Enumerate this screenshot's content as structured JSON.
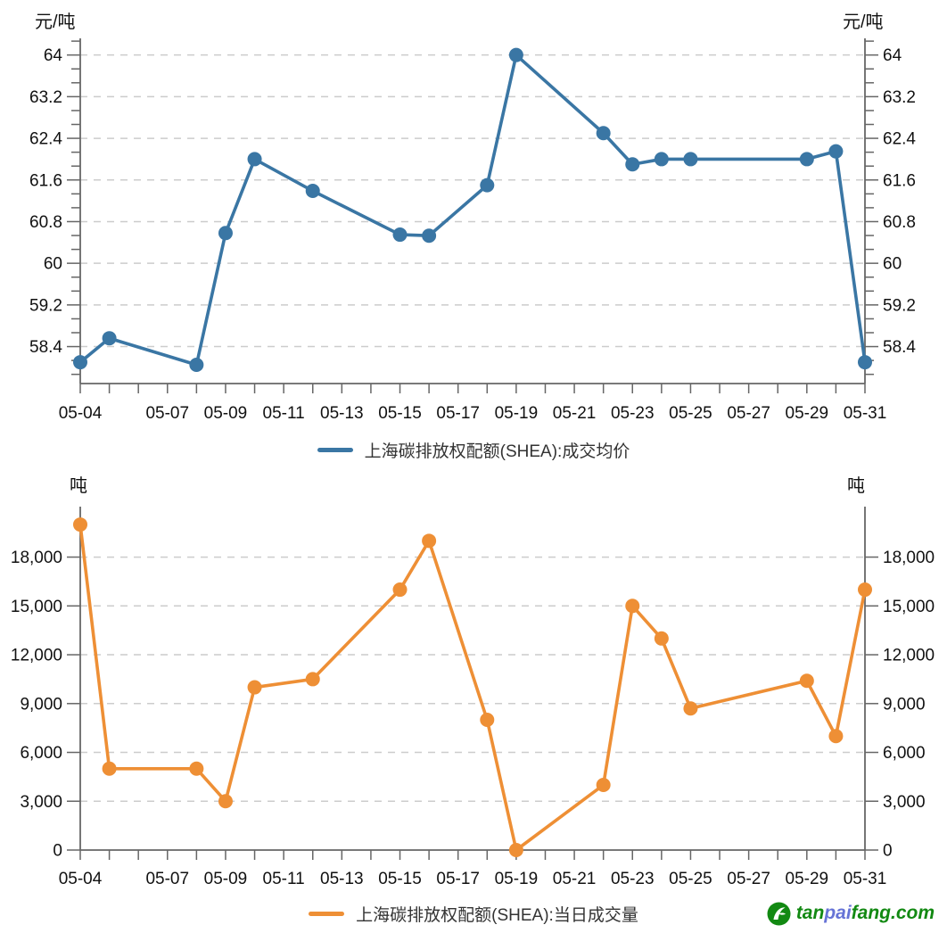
{
  "charts": [
    {
      "unit_left": "元/吨",
      "unit_right": "元/吨",
      "legend_label": "上海碳排放权配额(SHEA):成交均价",
      "line_color": "#3a76a4",
      "chart_data": {
        "type": "line",
        "title": "上海碳排放权配额(SHEA):成交均价",
        "xlabel": "",
        "ylabel": "元/吨",
        "x": [
          "05-04",
          "05-05",
          "05-08",
          "05-09",
          "05-10",
          "05-12",
          "05-15",
          "05-16",
          "05-18",
          "05-19",
          "05-22",
          "05-23",
          "05-24",
          "05-25",
          "05-29",
          "05-30",
          "05-31"
        ],
        "values": [
          58.1,
          58.56,
          58.05,
          60.58,
          62.0,
          61.39,
          60.55,
          60.53,
          61.5,
          64.0,
          62.5,
          61.9,
          62.0,
          62.0,
          62.0,
          62.15,
          58.1
        ],
        "x_axis": {
          "month_prefix": "05-",
          "first_day": 4,
          "last_day": 31,
          "labeled_days": [
            4,
            7,
            9,
            11,
            13,
            15,
            17,
            19,
            21,
            23,
            25,
            27,
            29,
            31
          ]
        },
        "y_ticks": [
          58.4,
          59.2,
          60,
          60.8,
          61.6,
          62.4,
          63.2,
          64
        ],
        "y_tick_labels": [
          "58.4",
          "59.2",
          "60",
          "60.8",
          "61.6",
          "62.4",
          "63.2",
          "64"
        ],
        "ylim": [
          57.69,
          64.32
        ],
        "y_minor_subdivisions": 3,
        "grid": true,
        "legend_position": "bottom"
      }
    },
    {
      "unit_left": "吨",
      "unit_right": "吨",
      "legend_label": "上海碳排放权配额(SHEA):当日成交量",
      "line_color": "#ee8f35",
      "chart_data": {
        "type": "line",
        "title": "上海碳排放权配额(SHEA):当日成交量",
        "xlabel": "",
        "ylabel": "吨",
        "x": [
          "05-04",
          "05-05",
          "05-08",
          "05-09",
          "05-10",
          "05-12",
          "05-15",
          "05-16",
          "05-18",
          "05-19",
          "05-22",
          "05-23",
          "05-24",
          "05-25",
          "05-29",
          "05-30",
          "05-31"
        ],
        "values": [
          20000,
          5000,
          5000,
          3000,
          10000,
          10500,
          16000,
          19000,
          8000,
          0,
          4000,
          15000,
          13000,
          8700,
          10400,
          7000,
          16000
        ],
        "x_axis": {
          "month_prefix": "05-",
          "first_day": 4,
          "last_day": 31,
          "labeled_days": [
            4,
            7,
            9,
            11,
            13,
            15,
            17,
            19,
            21,
            23,
            25,
            27,
            29,
            31
          ]
        },
        "y_ticks": [
          0,
          3000,
          6000,
          9000,
          12000,
          15000,
          18000
        ],
        "y_tick_labels": [
          "0",
          "3,000",
          "6,000",
          "9,000",
          "12,000",
          "15,000",
          "18,000"
        ],
        "ylim": [
          0,
          21100
        ],
        "y_minor_subdivisions": 0,
        "grid": true,
        "legend_position": "bottom"
      }
    }
  ],
  "style": {
    "axis_color": "#666666",
    "grid_color": "#cccccc",
    "tick_label_color": "#111111"
  },
  "watermark": {
    "icon_color": "#128912",
    "segments": [
      {
        "text": "tan",
        "color": "#128912"
      },
      {
        "text": "pai",
        "color": "#6673d6"
      },
      {
        "text": "fang.com",
        "color": "#128912"
      }
    ]
  }
}
